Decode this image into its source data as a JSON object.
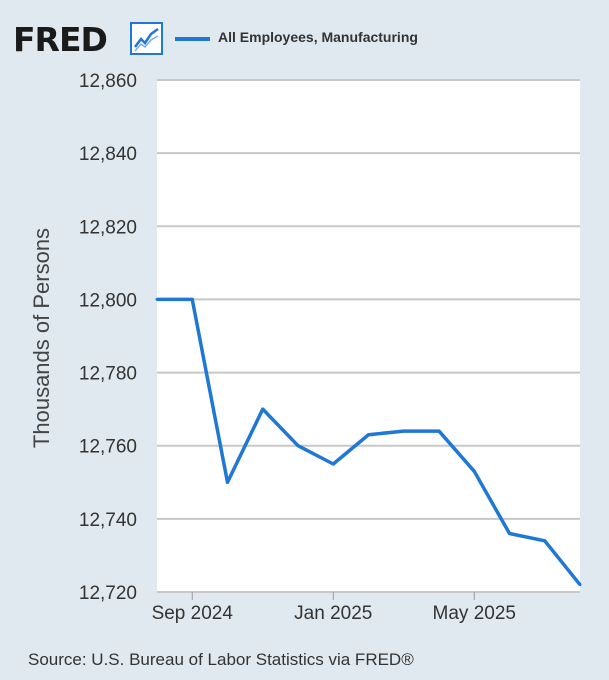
{
  "header": {
    "logo_text": "FRED",
    "legend_label": "All Employees, Manufacturing"
  },
  "colors": {
    "series": "#1f77d6",
    "plot_background": "#ffffff",
    "page_background": "#e1e9f0",
    "gridline": "#c8c8c8"
  },
  "chart_data": {
    "type": "line",
    "title": "",
    "xlabel": "",
    "ylabel": "Thousands of Persons",
    "ylim": [
      12720,
      12860
    ],
    "grid": true,
    "legend_position": "top-left",
    "y_ticks": [
      12720,
      12740,
      12760,
      12780,
      12800,
      12820,
      12840,
      12860
    ],
    "y_tick_labels": [
      "12,720",
      "12,740",
      "12,760",
      "12,780",
      "12,800",
      "12,820",
      "12,840",
      "12,860"
    ],
    "x_tick_labels": [
      {
        "date": "2024-09",
        "label": "Sep 2024"
      },
      {
        "date": "2025-01",
        "label": "Jan 2025"
      },
      {
        "date": "2025-05",
        "label": "May 2025"
      }
    ],
    "series": [
      {
        "name": "All Employees, Manufacturing",
        "points": [
          {
            "x": "2024-08",
            "y": 12800
          },
          {
            "x": "2024-09",
            "y": 12800
          },
          {
            "x": "2024-10",
            "y": 12750
          },
          {
            "x": "2024-11",
            "y": 12770
          },
          {
            "x": "2024-12",
            "y": 12760
          },
          {
            "x": "2025-01",
            "y": 12755
          },
          {
            "x": "2025-02",
            "y": 12763
          },
          {
            "x": "2025-03",
            "y": 12764
          },
          {
            "x": "2025-04",
            "y": 12764
          },
          {
            "x": "2025-05",
            "y": 12753
          },
          {
            "x": "2025-06",
            "y": 12736
          },
          {
            "x": "2025-07",
            "y": 12734
          },
          {
            "x": "2025-08",
            "y": 12722
          }
        ]
      }
    ]
  },
  "footer": {
    "source": "Source: U.S. Bureau of Labor Statistics via FRED®"
  }
}
